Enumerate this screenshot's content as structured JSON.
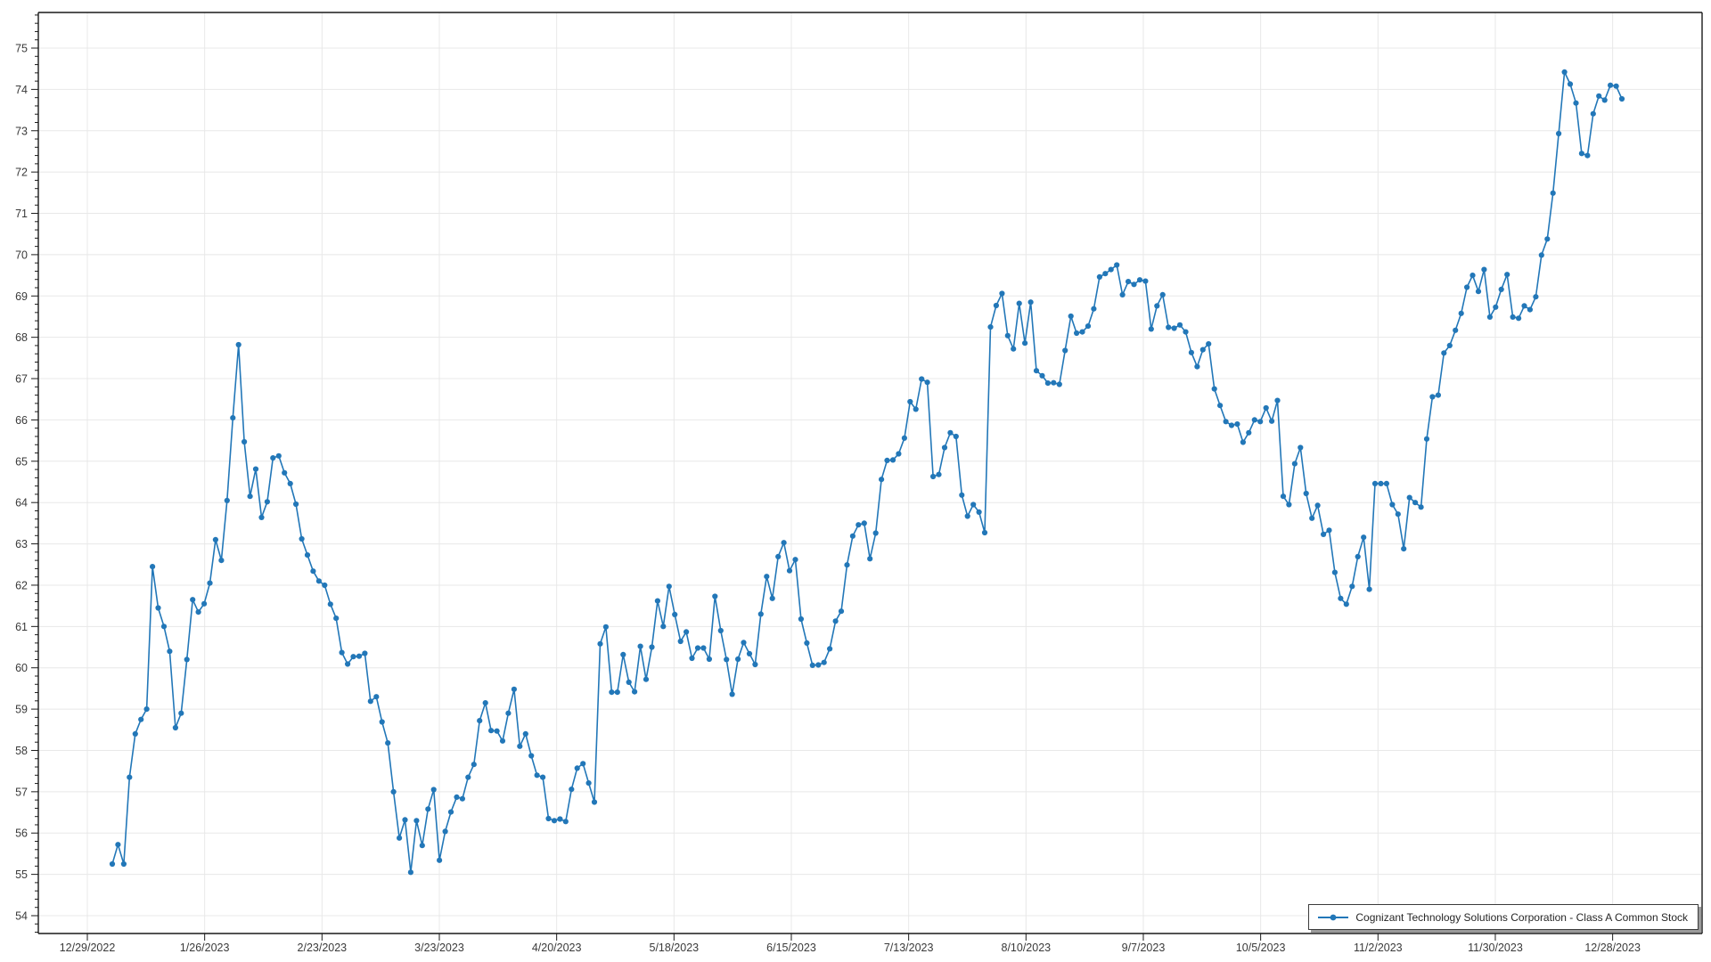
{
  "chart_data": {
    "type": "line",
    "title": "",
    "series_name": "Cognizant Technology Solutions Corporation - Class A Common Stock",
    "legend_position": "bottom-right",
    "grid": true,
    "marker": "circle",
    "line_color": "#2277b8",
    "grid_color": "#e8e8e8",
    "axis_color": "#1a1a1a",
    "label_color": "#3a3a3a",
    "x_tick_labels": [
      "12/29/2022",
      "1/26/2023",
      "2/23/2023",
      "3/23/2023",
      "4/20/2023",
      "5/18/2023",
      "6/15/2023",
      "7/13/2023",
      "8/10/2023",
      "9/7/2023",
      "10/5/2023",
      "11/2/2023",
      "11/30/2023",
      "12/28/2023"
    ],
    "y_ticks": [
      54,
      55,
      56,
      57,
      58,
      59,
      60,
      61,
      62,
      63,
      64,
      65,
      66,
      67,
      68,
      69,
      70,
      71,
      72,
      73,
      74,
      75
    ],
    "y_minor_step": 0.2,
    "ylim": [
      53.57,
      75.86
    ],
    "values": [
      55.25,
      55.72,
      55.25,
      57.35,
      58.4,
      58.75,
      59.0,
      62.45,
      61.45,
      61.0,
      60.4,
      58.55,
      58.9,
      60.2,
      61.65,
      61.35,
      61.55,
      62.05,
      63.1,
      62.6,
      64.05,
      66.05,
      67.82,
      65.47,
      64.15,
      64.81,
      63.64,
      64.02,
      65.08,
      65.13,
      64.72,
      64.46,
      63.96,
      63.12,
      62.73,
      62.34,
      62.1,
      62.0,
      61.54,
      61.2,
      60.37,
      60.09,
      60.27,
      60.28,
      60.35,
      59.19,
      59.3,
      58.69,
      58.18,
      57.0,
      55.88,
      56.32,
      55.05,
      56.3,
      55.7,
      56.58,
      57.05,
      55.34,
      56.04,
      56.51,
      56.87,
      56.83,
      57.35,
      57.66,
      58.72,
      59.15,
      58.48,
      58.47,
      58.23,
      58.9,
      59.48,
      58.1,
      58.4,
      57.87,
      57.4,
      57.35,
      56.35,
      56.3,
      56.34,
      56.28,
      57.06,
      57.57,
      57.68,
      57.21,
      56.75,
      60.58,
      60.99,
      59.41,
      59.41,
      60.32,
      59.65,
      59.42,
      60.52,
      59.72,
      60.5,
      61.62,
      61.0,
      61.97,
      61.29,
      60.64,
      60.87,
      60.23,
      60.48,
      60.48,
      60.21,
      61.73,
      60.9,
      60.2,
      59.36,
      60.21,
      60.61,
      60.34,
      60.08,
      61.3,
      62.21,
      61.68,
      62.69,
      63.03,
      62.35,
      62.62,
      61.18,
      60.6,
      60.06,
      60.07,
      60.13,
      60.46,
      61.13,
      61.37,
      62.49,
      63.19,
      63.46,
      63.5,
      62.64,
      63.26,
      64.56,
      65.02,
      65.03,
      65.18,
      65.56,
      66.44,
      66.26,
      66.99,
      66.91,
      64.63,
      64.68,
      65.33,
      65.69,
      65.6,
      64.18,
      63.67,
      63.95,
      63.77,
      63.27,
      68.25,
      68.77,
      69.06,
      68.04,
      67.72,
      68.82,
      67.86,
      68.85,
      67.19,
      67.07,
      66.89,
      66.9,
      66.86,
      67.68,
      68.51,
      68.1,
      68.13,
      68.27,
      68.69,
      69.46,
      69.54,
      69.64,
      69.75,
      69.03,
      69.35,
      69.28,
      69.39,
      69.36,
      68.2,
      68.76,
      69.03,
      68.24,
      68.22,
      68.3,
      68.13,
      67.63,
      67.29,
      67.7,
      67.84,
      66.75,
      66.35,
      65.96,
      65.87,
      65.9,
      65.46,
      65.69,
      66.0,
      65.96,
      66.29,
      65.97,
      66.47,
      64.15,
      63.95,
      64.94,
      65.33,
      64.22,
      63.62,
      63.93,
      63.23,
      63.33,
      62.31,
      61.68,
      61.54,
      61.97,
      62.69,
      63.16,
      61.9,
      64.46,
      64.46,
      64.46,
      63.95,
      63.72,
      62.88,
      64.12,
      64.0,
      63.89,
      65.54,
      66.56,
      66.6,
      67.62,
      67.8,
      68.17,
      68.58,
      69.21,
      69.5,
      69.11,
      69.64,
      68.49,
      68.73,
      69.16,
      69.52,
      68.49,
      68.46,
      68.76,
      68.67,
      68.98,
      69.99,
      70.38,
      71.49,
      72.93,
      74.42,
      74.13,
      73.67,
      72.45,
      72.4,
      73.41,
      73.84,
      73.74,
      74.1,
      74.08,
      73.77
    ]
  },
  "legend": {
    "label": "Cognizant Technology Solutions Corporation - Class A Common Stock"
  }
}
